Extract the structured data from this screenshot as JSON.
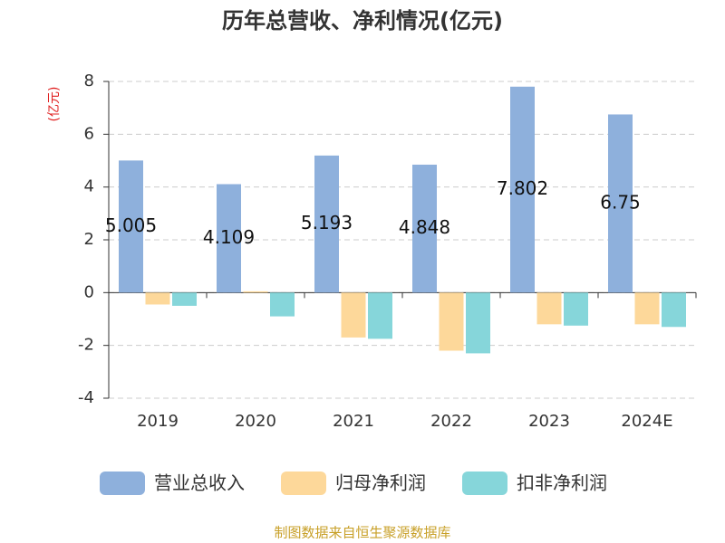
{
  "chart_data": {
    "type": "bar",
    "title": "历年总营收、净利情况(亿元)",
    "y_label": "(亿元)",
    "categories": [
      "2019",
      "2020",
      "2021",
      "2022",
      "2023",
      "2024E"
    ],
    "series": [
      {
        "name": "营业总收入",
        "color": "#8eb0dc",
        "values": [
          5.005,
          4.109,
          5.193,
          4.848,
          7.802,
          6.75
        ],
        "show_labels": true
      },
      {
        "name": "归母净利润",
        "color": "#fdd89a",
        "values": [
          -0.45,
          0.05,
          -1.7,
          -2.2,
          -1.2,
          -1.2
        ]
      },
      {
        "name": "扣非净利润",
        "color": "#86d6da",
        "values": [
          -0.5,
          -0.9,
          -1.75,
          -2.3,
          -1.25,
          -1.3
        ]
      }
    ],
    "ylim": [
      -4,
      8
    ],
    "yticks": [
      -4,
      -2,
      0,
      2,
      4,
      6,
      8
    ],
    "grid": true,
    "source": "制图数据来自恒生聚源数据库"
  }
}
